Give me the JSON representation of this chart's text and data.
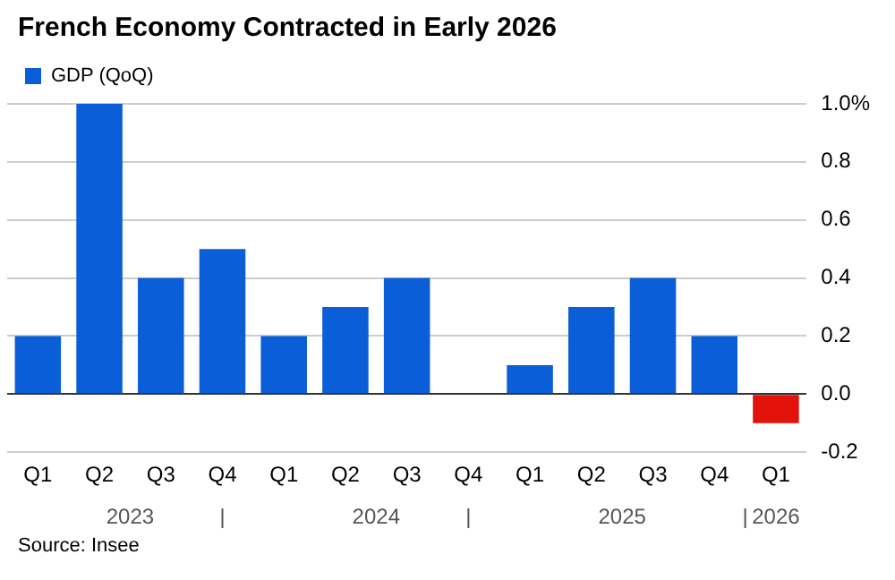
{
  "chart_data": {
    "type": "bar",
    "title": "French Economy Contracted in Early 2026",
    "categories": [
      "Q1",
      "Q2",
      "Q3",
      "Q4",
      "Q1",
      "Q2",
      "Q3",
      "Q4",
      "Q1",
      "Q2",
      "Q3",
      "Q4",
      "Q1"
    ],
    "series": [
      {
        "name": "GDP (QoQ)",
        "color": "#0a5ed7",
        "values": [
          0.2,
          1.0,
          0.4,
          0.5,
          0.2,
          0.3,
          0.4,
          0.0,
          0.1,
          0.3,
          0.4,
          0.2,
          -0.1
        ],
        "colors": [
          "#0a5ed7",
          "#0a5ed7",
          "#0a5ed7",
          "#0a5ed7",
          "#0a5ed7",
          "#0a5ed7",
          "#0a5ed7",
          "#0a5ed7",
          "#0a5ed7",
          "#0a5ed7",
          "#0a5ed7",
          "#0a5ed7",
          "#e3120b"
        ]
      }
    ],
    "ylim": [
      -0.2,
      1.0
    ],
    "yticks": [
      {
        "value": -0.2,
        "label": "-0.2"
      },
      {
        "value": 0,
        "label": "0.0"
      },
      0.2,
      0.4,
      0.6,
      0.8,
      {
        "value": 1.0,
        "label": "1.0%"
      }
    ],
    "grid": "y",
    "legend": "top left",
    "annotations": [
      "2023",
      "2024",
      "2025",
      "2026",
      "Source: Insee"
    ]
  }
}
